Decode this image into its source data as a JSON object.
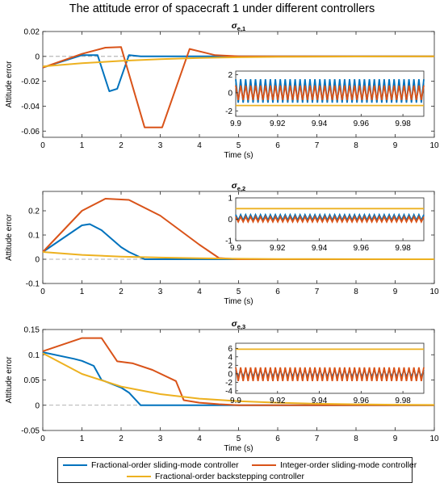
{
  "figure_title": "The attitude error of spacecraft 1 under different controllers",
  "legend": [
    {
      "label": "Fractional-order sliding-mode controller",
      "color": "#0072BD"
    },
    {
      "label": "Integer-order sliding-mode controller",
      "color": "#D95319"
    },
    {
      "label": "Fractional-order backstepping controller",
      "color": "#EDB120"
    }
  ],
  "chart_data": [
    {
      "type": "line",
      "title": "σe,1",
      "title_main": "σ",
      "title_sub": "e,1",
      "xlabel": "Time (s)",
      "ylabel": "Attitude error",
      "xlim": [
        0,
        10
      ],
      "ylim": [
        -0.065,
        0.02
      ],
      "xticks": [
        "0",
        "1",
        "2",
        "3",
        "4",
        "5",
        "6",
        "7",
        "8",
        "9",
        "10"
      ],
      "yticks": [
        "0.02",
        "0",
        "-0.02",
        "-0.04",
        "-0.06"
      ],
      "series": [
        {
          "name": "Fractional-order sliding-mode controller",
          "color": "#0072BD",
          "x": [
            0,
            1.0,
            1.4,
            1.7,
            1.9,
            2.2,
            2.5,
            3.0,
            4.0,
            5.0,
            10.0
          ],
          "y": [
            -0.009,
            0.001,
            0.001,
            -0.028,
            -0.026,
            0.001,
            0.0,
            0.0,
            0.0,
            0.0,
            0.0
          ]
        },
        {
          "name": "Integer-order sliding-mode controller",
          "color": "#D95319",
          "x": [
            0,
            1.0,
            1.6,
            2.0,
            2.6,
            3.05,
            3.75,
            4.4,
            5.0,
            10.0
          ],
          "y": [
            -0.009,
            0.002,
            0.007,
            0.0075,
            -0.057,
            -0.057,
            0.006,
            0.001,
            0.0,
            0.0
          ]
        },
        {
          "name": "Fractional-order backstepping controller",
          "color": "#EDB120",
          "x": [
            0,
            1,
            2,
            3,
            4,
            5,
            6,
            8,
            10
          ],
          "y": [
            -0.008,
            -0.0055,
            -0.0036,
            -0.0022,
            -0.0013,
            -0.0007,
            -0.0004,
            -0.0001,
            0.0
          ]
        }
      ],
      "inset": {
        "xlim": [
          9.9,
          9.99
        ],
        "ylim": [
          -2.6,
          2.4
        ],
        "xticks": [
          "9.9",
          "9.92",
          "9.94",
          "9.96",
          "9.98"
        ],
        "yticks": [
          "2",
          "0",
          "-2"
        ],
        "series": [
          {
            "color": "#0072BD",
            "center": 0.2,
            "amplitude": 1.3,
            "cycles": 38
          },
          {
            "color": "#D95319",
            "center": 0.0,
            "amplitude": 0.8,
            "cycles": 38
          },
          {
            "color": "#EDB120",
            "center": -1.4,
            "amplitude": 0.0,
            "cycles": 0
          }
        ]
      }
    },
    {
      "type": "line",
      "title": "σe,2",
      "title_main": "σ",
      "title_sub": "e,2",
      "xlabel": "Time (s)",
      "ylabel": "Attitude error",
      "xlim": [
        0,
        10
      ],
      "ylim": [
        -0.1,
        0.28
      ],
      "xticks": [
        "0",
        "1",
        "2",
        "3",
        "4",
        "5",
        "6",
        "7",
        "8",
        "9",
        "10"
      ],
      "yticks": [
        "0.2",
        "0.1",
        "0",
        "-0.1"
      ],
      "series": [
        {
          "name": "Fractional-order sliding-mode controller",
          "color": "#0072BD",
          "x": [
            0,
            1.0,
            1.2,
            1.5,
            2.0,
            2.2,
            2.6,
            3.0,
            5.0,
            10.0
          ],
          "y": [
            0.03,
            0.14,
            0.145,
            0.12,
            0.05,
            0.03,
            0.0,
            0.0,
            0.0,
            0.0
          ]
        },
        {
          "name": "Integer-order sliding-mode controller",
          "color": "#D95319",
          "x": [
            0,
            1.0,
            1.6,
            2.2,
            3.0,
            3.5,
            4.0,
            4.5,
            5.0,
            10.0
          ],
          "y": [
            0.03,
            0.2,
            0.25,
            0.245,
            0.18,
            0.12,
            0.06,
            0.005,
            0.0,
            0.0
          ]
        },
        {
          "name": "Fractional-order backstepping controller",
          "color": "#EDB120",
          "x": [
            0,
            1,
            2,
            3,
            4,
            5,
            6,
            8,
            10
          ],
          "y": [
            0.03,
            0.018,
            0.011,
            0.007,
            0.004,
            0.002,
            0.001,
            0.0003,
            0.0
          ]
        }
      ],
      "inset": {
        "xlim": [
          9.9,
          9.99
        ],
        "ylim": [
          -1.0,
          1.0
        ],
        "xticks": [
          "9.9",
          "9.92",
          "9.94",
          "9.96",
          "9.98"
        ],
        "yticks": [
          "1",
          "0",
          "-1"
        ],
        "series": [
          {
            "color": "#0072BD",
            "center": 0.08,
            "amplitude": 0.13,
            "cycles": 38
          },
          {
            "color": "#D95319",
            "center": 0.0,
            "amplitude": 0.12,
            "cycles": 38
          },
          {
            "color": "#EDB120",
            "center": 0.5,
            "amplitude": 0.0,
            "cycles": 0
          }
        ]
      }
    },
    {
      "type": "line",
      "title": "σe,3",
      "title_main": "σ",
      "title_sub": "e,3",
      "xlabel": "Time (s)",
      "ylabel": "Attitude error",
      "xlim": [
        0,
        10
      ],
      "ylim": [
        -0.05,
        0.15
      ],
      "xticks": [
        "0",
        "1",
        "2",
        "3",
        "4",
        "5",
        "6",
        "7",
        "8",
        "9",
        "10"
      ],
      "yticks": [
        "0.15",
        "0.1",
        "0.05",
        "0",
        "-0.05"
      ],
      "series": [
        {
          "name": "Fractional-order sliding-mode controller",
          "color": "#0072BD",
          "x": [
            0,
            0.8,
            1.0,
            1.3,
            1.5,
            2.0,
            2.2,
            2.5,
            3.0,
            10.0
          ],
          "y": [
            0.105,
            0.092,
            0.088,
            0.078,
            0.05,
            0.035,
            0.025,
            0.0,
            0.0,
            0.0
          ]
        },
        {
          "name": "Integer-order sliding-mode controller",
          "color": "#D95319",
          "x": [
            0,
            1.0,
            1.5,
            1.9,
            2.3,
            2.8,
            3.4,
            3.6,
            4.0,
            4.5,
            5.0,
            10.0
          ],
          "y": [
            0.107,
            0.133,
            0.133,
            0.087,
            0.083,
            0.07,
            0.048,
            0.01,
            0.005,
            0.002,
            0.0,
            0.0
          ]
        },
        {
          "name": "Fractional-order backstepping controller",
          "color": "#EDB120",
          "x": [
            0,
            1,
            2,
            3,
            4,
            5,
            6,
            7,
            8,
            9,
            10
          ],
          "y": [
            0.103,
            0.062,
            0.037,
            0.022,
            0.013,
            0.008,
            0.005,
            0.003,
            0.0018,
            0.001,
            0.0005
          ]
        }
      ],
      "inset": {
        "xlim": [
          9.9,
          9.99
        ],
        "ylim": [
          -4.6,
          7.2
        ],
        "xticks": [
          "9.9",
          "9.92",
          "9.94",
          "9.96",
          "9.98"
        ],
        "yticks": [
          "6",
          "4",
          "2",
          "0",
          "-2",
          "-4"
        ],
        "series": [
          {
            "color": "#0072BD",
            "center": 0.1,
            "amplitude": 0.8,
            "cycles": 38
          },
          {
            "color": "#D95319",
            "center": -0.1,
            "amplitude": 1.6,
            "cycles": 38
          },
          {
            "color": "#EDB120",
            "center": 5.8,
            "amplitude": 0.0,
            "cycles": 0
          }
        ]
      }
    }
  ]
}
